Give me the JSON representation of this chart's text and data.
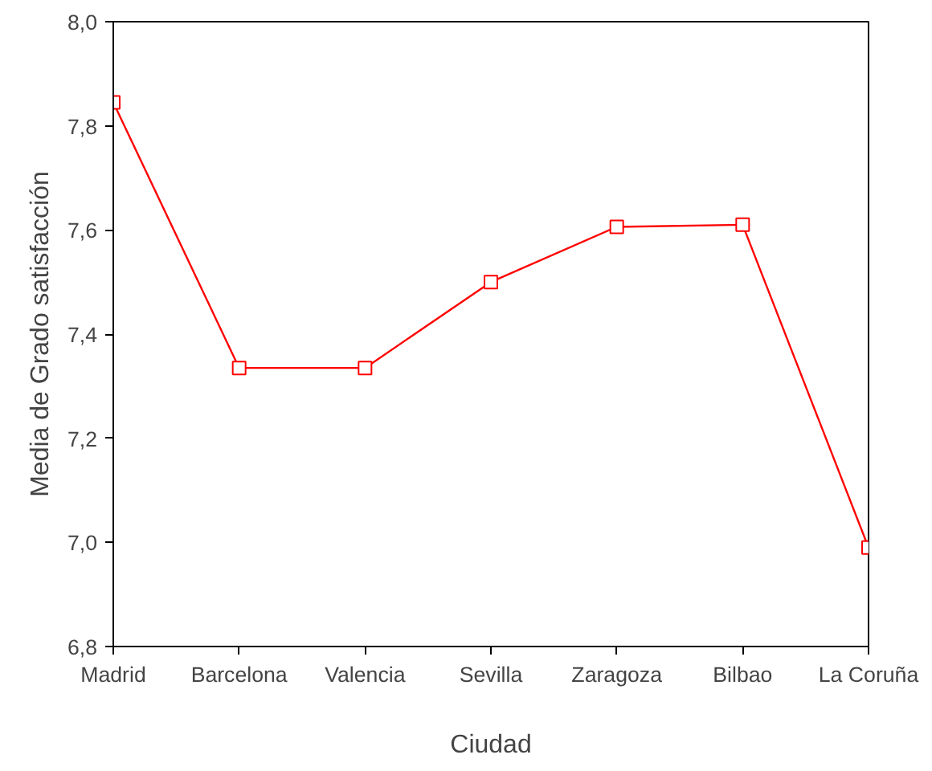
{
  "chart_data": {
    "type": "line",
    "xlabel": "Ciudad",
    "ylabel": "Media de Grado satisfacción",
    "categories": [
      "Madrid",
      "Barcelona",
      "Valencia",
      "Sevilla",
      "Zaragoza",
      "Bilbao",
      "La Coruña"
    ],
    "series": [
      {
        "color": "#ff0000",
        "values": [
          7.845,
          7.335,
          7.335,
          7.5,
          7.606,
          7.61,
          6.99
        ]
      }
    ],
    "ylim": [
      6.8,
      8.0
    ],
    "yticks": [
      {
        "value": 6.8,
        "label": "6,8"
      },
      {
        "value": 7.0,
        "label": "7,0"
      },
      {
        "value": 7.2,
        "label": "7,2"
      },
      {
        "value": 7.4,
        "label": "7,4"
      },
      {
        "value": 7.6,
        "label": "7,6"
      },
      {
        "value": 7.8,
        "label": "7,8"
      },
      {
        "value": 8.0,
        "label": "8,0"
      }
    ],
    "marker": "square",
    "line_style": "solid",
    "grid": false
  }
}
